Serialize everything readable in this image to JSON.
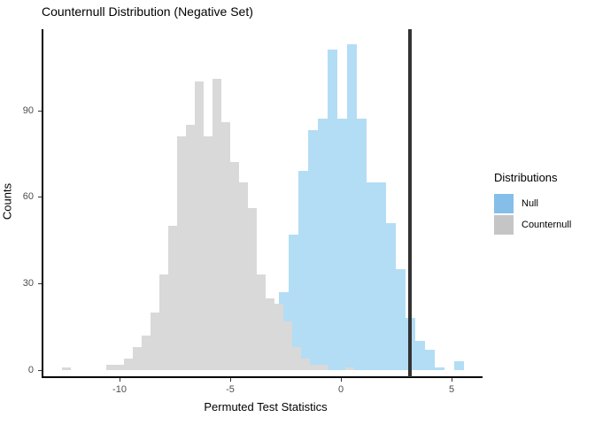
{
  "chart_data": {
    "type": "bar",
    "subtype": "overlaid-histograms",
    "title": "Counternull Distribution (Negative Set)",
    "xlabel": "Permuted Test Statistics",
    "ylabel": "Counts",
    "x_ticks": [
      -10,
      -5,
      0,
      5
    ],
    "y_ticks": [
      0,
      30,
      60,
      90
    ],
    "xlim": [
      -13.5,
      6.4
    ],
    "ylim": [
      0,
      120
    ],
    "grid": "off",
    "legend": {
      "title": "Distributions",
      "position": "right",
      "entries": [
        {
          "name": "null",
          "label": "Null",
          "color": "#85BFE9"
        },
        {
          "name": "counternull",
          "label": "Counternull",
          "color": "#C5C5C5"
        }
      ]
    },
    "vline": {
      "x": 3.1,
      "color": "#333333"
    },
    "series": [
      {
        "name": "Counternull",
        "fill": "#D9D9D9",
        "bin_start": -12.6,
        "bin_width": 0.4,
        "counts": [
          1,
          0,
          0,
          0,
          0,
          2,
          2,
          4,
          8,
          12,
          20,
          33,
          50,
          81,
          85,
          100,
          81,
          101,
          86,
          72,
          65,
          56,
          33,
          25,
          23,
          17,
          8,
          4,
          2,
          2,
          0,
          0,
          1
        ]
      },
      {
        "name": "Null",
        "fill": "rgba(86,180,233,0.45)",
        "bin_start": -7.2,
        "bin_width": 0.44,
        "counts": [
          1,
          0,
          0,
          0,
          0,
          2,
          3,
          6,
          12,
          23,
          27,
          47,
          69,
          83,
          87,
          111,
          87,
          113,
          87,
          65,
          65,
          51,
          35,
          18,
          10,
          7,
          1,
          0,
          3
        ]
      }
    ]
  }
}
